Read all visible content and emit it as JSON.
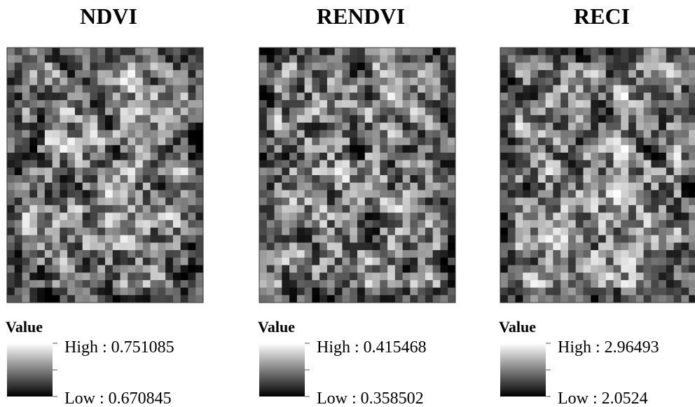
{
  "panels": [
    {
      "title": "NDVI",
      "legend_title": "Value",
      "high": "High : 0.751085",
      "low": "Low : 0.670845"
    },
    {
      "title": "RENDVI",
      "legend_title": "Value",
      "high": "High : 0.415468",
      "low": "Low : 0.358502"
    },
    {
      "title": "RECI",
      "legend_title": "Value",
      "high": "High : 2.96493",
      "low": "Low : 2.0524"
    }
  ]
}
